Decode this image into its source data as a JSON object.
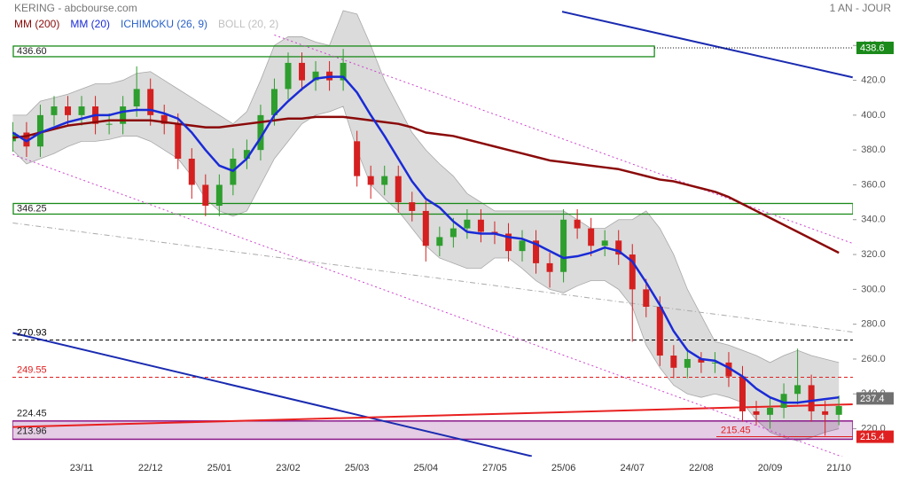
{
  "chart_data": {
    "type": "candlestick",
    "title": "KERING - abcbourse.com",
    "period": "1 AN - JOUR",
    "categories": [
      null,
      null,
      null,
      null,
      null,
      "23/11",
      null,
      null,
      null,
      null,
      "22/12",
      null,
      null,
      null,
      null,
      "25/01",
      null,
      null,
      null,
      null,
      "23/02",
      null,
      null,
      null,
      null,
      "25/03",
      null,
      null,
      null,
      null,
      "25/04",
      null,
      null,
      null,
      null,
      "27/05",
      null,
      null,
      null,
      null,
      "25/06",
      null,
      null,
      null,
      null,
      "24/07",
      null,
      null,
      null,
      null,
      "22/08",
      null,
      null,
      null,
      null,
      "20/09",
      null,
      null,
      null,
      null,
      "21/10"
    ],
    "open": [
      385,
      390,
      382,
      400,
      405,
      400,
      405,
      395,
      395,
      405,
      415,
      400,
      395,
      375,
      360,
      348,
      360,
      375,
      380,
      400,
      415,
      430,
      420,
      425,
      420,
      385,
      365,
      360,
      365,
      350,
      345,
      325,
      330,
      335,
      340,
      333,
      332,
      322,
      328,
      315,
      310,
      340,
      335,
      325,
      328,
      320,
      300,
      290,
      262,
      255,
      260,
      258,
      258,
      250,
      230,
      228,
      232,
      240,
      245,
      230,
      228
    ],
    "high": [
      396,
      396,
      406,
      411,
      411,
      411,
      411,
      401,
      411,
      428,
      421,
      406,
      401,
      381,
      366,
      366,
      381,
      386,
      406,
      421,
      436,
      436,
      431,
      431,
      438,
      391,
      371,
      371,
      371,
      356,
      351,
      336,
      341,
      346,
      346,
      339,
      338,
      334,
      334,
      321,
      346,
      346,
      341,
      334,
      334,
      326,
      306,
      296,
      268,
      266,
      264,
      264,
      264,
      256,
      236,
      238,
      246,
      266,
      251,
      236,
      239
    ],
    "low": [
      379,
      376,
      376,
      394,
      394,
      394,
      389,
      389,
      389,
      399,
      394,
      389,
      369,
      352,
      342,
      342,
      354,
      369,
      374,
      394,
      409,
      414,
      414,
      414,
      414,
      359,
      352,
      354,
      344,
      339,
      316,
      319,
      324,
      329,
      327,
      326,
      316,
      316,
      309,
      301,
      304,
      329,
      319,
      319,
      314,
      270,
      284,
      256,
      249,
      249,
      252,
      252,
      244,
      224,
      222,
      220,
      226,
      234,
      224,
      216,
      222
    ],
    "close": [
      390,
      382,
      400,
      405,
      400,
      405,
      395,
      395,
      405,
      415,
      400,
      395,
      375,
      360,
      348,
      360,
      375,
      380,
      400,
      415,
      430,
      420,
      425,
      420,
      430,
      365,
      360,
      365,
      350,
      345,
      325,
      330,
      335,
      340,
      333,
      332,
      322,
      328,
      315,
      310,
      340,
      335,
      325,
      328,
      320,
      300,
      290,
      262,
      255,
      260,
      258,
      258,
      250,
      230,
      228,
      232,
      240,
      245,
      230,
      228,
      233
    ],
    "up_color": "#2e9e2e",
    "down_color": "#d42020",
    "series": [
      {
        "name": "MM (200)",
        "color": "#8b0a0a",
        "values": [
          387,
          388,
          390,
          392,
          394,
          395,
          396,
          397,
          397,
          397,
          397,
          396,
          395,
          394,
          393,
          393,
          394,
          395,
          396,
          397,
          398,
          398,
          399,
          399,
          399,
          398,
          397,
          396,
          395,
          393,
          390,
          389,
          388,
          386,
          384,
          382,
          380,
          378,
          376,
          374,
          373,
          372,
          371,
          370,
          369,
          367,
          365,
          363,
          362,
          360,
          358,
          356,
          353,
          349,
          345,
          341,
          337,
          333,
          329,
          325,
          321
        ]
      },
      {
        "name": "MM (20)",
        "color": "#1a2bd6",
        "values": [
          390,
          385,
          390,
          393,
          396,
          398,
          400,
          400,
          402,
          403,
          403,
          401,
          398,
          390,
          380,
          371,
          368,
          375,
          387,
          400,
          408,
          415,
          421,
          422,
          422,
          413,
          400,
          388,
          375,
          362,
          352,
          347,
          339,
          333,
          332,
          332,
          330,
          329,
          326,
          322,
          318,
          319,
          321,
          324,
          322,
          316,
          304,
          291,
          276,
          265,
          260,
          259,
          255,
          250,
          243,
          238,
          235,
          235,
          236,
          237,
          238
        ]
      },
      {
        "name": "ICHIMOKU (26, 9)",
        "color": "#2a62c8"
      },
      {
        "name": "BOLL (20, 2)",
        "color": "#c0c0c0",
        "upper": [
          400,
          400,
          408,
          410,
          412,
          415,
          418,
          418,
          420,
          424,
          425,
          420,
          415,
          410,
          405,
          400,
          395,
          402,
          420,
          440,
          445,
          445,
          442,
          440,
          460,
          458,
          440,
          420,
          405,
          390,
          380,
          372,
          365,
          355,
          350,
          345,
          345,
          345,
          345,
          345,
          345,
          340,
          335,
          335,
          340,
          340,
          345,
          335,
          320,
          300,
          285,
          270,
          268,
          265,
          262,
          258,
          262,
          265,
          262,
          260,
          258
        ],
        "lower": [
          380,
          372,
          375,
          378,
          382,
          385,
          385,
          386,
          388,
          388,
          385,
          380,
          375,
          365,
          352,
          345,
          342,
          345,
          360,
          375,
          385,
          395,
          400,
          402,
          405,
          380,
          360,
          352,
          345,
          335,
          325,
          318,
          315,
          312,
          312,
          318,
          318,
          312,
          305,
          300,
          298,
          302,
          305,
          305,
          300,
          290,
          268,
          255,
          245,
          240,
          238,
          240,
          238,
          235,
          225,
          218,
          215,
          213,
          215,
          218,
          220
        ]
      }
    ],
    "ylim": [
      204,
      461
    ],
    "yticks": [
      {
        "value": 220,
        "label": "220.0"
      },
      {
        "value": 240,
        "label": "240.0"
      },
      {
        "value": 260,
        "label": "260.0"
      },
      {
        "value": 280,
        "label": "280.0"
      },
      {
        "value": 300,
        "label": "300.0"
      },
      {
        "value": 320,
        "label": "320.0"
      },
      {
        "value": 340,
        "label": "340.0"
      },
      {
        "value": 360,
        "label": "360.0"
      },
      {
        "value": 380,
        "label": "380.0"
      },
      {
        "value": 400,
        "label": "400.0"
      },
      {
        "value": 420,
        "label": "420.0"
      },
      {
        "value": 440,
        "label": "440.0"
      }
    ],
    "levels": [
      {
        "value": 436.6,
        "label": "436.60",
        "kind": "box",
        "color": "#1a8a1a",
        "end": 46.6
      },
      {
        "value": 346.25,
        "label": "346.25",
        "kind": "box",
        "color": "#1a8a1a"
      },
      {
        "value": 270.93,
        "label": "270.93",
        "kind": "dash",
        "color": "#000000"
      },
      {
        "value": 249.55,
        "label": "249.55",
        "kind": "dash",
        "color": "#e02020"
      },
      {
        "value": 224.45,
        "label": "224.45",
        "value2": 213.96,
        "label2": "213.96",
        "kind": "zone",
        "color": "#8a1a8a"
      },
      {
        "value": 215.45,
        "label": "215.45",
        "kind": "line",
        "color": "#e02020",
        "start": 51.1
      }
    ],
    "trendlines": [
      {
        "x": [
          39.9,
          61
        ],
        "values": [
          459.4,
          421.7
        ],
        "color": "#1a2bb0",
        "dash": "none"
      },
      {
        "x": [
          0,
          37.7
        ],
        "values": [
          275,
          204.2
        ],
        "color": "#1a2bb0",
        "dash": "none"
      },
      {
        "x": [
          0,
          61
        ],
        "values": [
          221,
          234
        ],
        "color": "#e82020",
        "dash": "none"
      },
      {
        "x": [
          19,
          61
        ],
        "values": [
          446,
          326.4
        ],
        "color": "#cc44cc",
        "dash": "2,3"
      },
      {
        "x": [
          0,
          61
        ],
        "values": [
          377.4,
          201.7
        ],
        "color": "#cc44cc",
        "dash": "2,3"
      },
      {
        "x": [
          0,
          61
        ],
        "values": [
          338.1,
          275.5
        ],
        "color": "#aaaaaa",
        "dash": "6,3,1,3"
      }
    ],
    "tags": [
      {
        "value": 438.6,
        "color": "#1a8a1a"
      },
      {
        "value": 237.4,
        "color": "#707070"
      },
      {
        "value": 215.4,
        "color": "#e02020"
      }
    ]
  }
}
